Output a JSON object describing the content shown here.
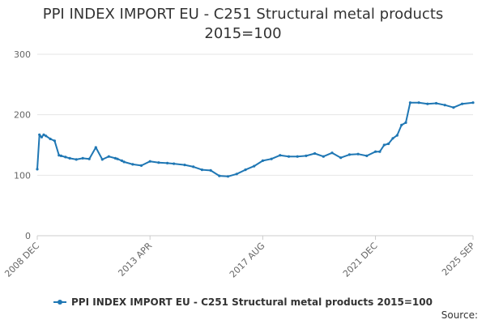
{
  "header": {
    "title_line1": "PPI INDEX IMPORT EU - C251 Structural metal products",
    "title_line2": "2015=100"
  },
  "legend": {
    "label": "PPI INDEX IMPORT EU - C251 Structural metal products 2015=100"
  },
  "footer": {
    "source": "Source:"
  },
  "colors": {
    "series": "#1f77b4",
    "grid": "#e6e6e6",
    "text": "#333333",
    "axis_text": "#666666"
  },
  "chart_data": {
    "type": "line",
    "title": "PPI INDEX IMPORT EU - C251 Structural metal products 2015=100",
    "xlabel": "",
    "ylabel": "",
    "ylim": [
      0,
      300
    ],
    "y_ticks": [
      0,
      100,
      200,
      300
    ],
    "x_ticks": [
      "2008 DEC",
      "2013 APR",
      "2017 AUG",
      "2021 DEC",
      "2025 SEP"
    ],
    "xlim": [
      "2008-12",
      "2025-09"
    ],
    "grid": true,
    "legend_position": "bottom",
    "series": [
      {
        "name": "PPI INDEX IMPORT EU - C251 Structural metal products 2015=100",
        "x": [
          "2008-12",
          "2009-01",
          "2009-02",
          "2009-03",
          "2009-04",
          "2009-06",
          "2009-08",
          "2009-10",
          "2009-11",
          "2010-01",
          "2010-03",
          "2010-06",
          "2010-09",
          "2010-12",
          "2011-03",
          "2011-06",
          "2011-09",
          "2011-12",
          "2012-01",
          "2012-03",
          "2012-04",
          "2012-08",
          "2012-12",
          "2013-04",
          "2013-08",
          "2013-12",
          "2014-03",
          "2014-08",
          "2014-12",
          "2015-04",
          "2015-08",
          "2015-12",
          "2016-04",
          "2016-08",
          "2016-12",
          "2017-04",
          "2017-08",
          "2017-12",
          "2018-04",
          "2018-08",
          "2018-12",
          "2019-04",
          "2019-08",
          "2019-12",
          "2020-04",
          "2020-08",
          "2020-12",
          "2021-04",
          "2021-08",
          "2021-12",
          "2022-02",
          "2022-04",
          "2022-06",
          "2022-08",
          "2022-10",
          "2022-12",
          "2023-02",
          "2023-04",
          "2023-08",
          "2023-12",
          "2024-04",
          "2024-08",
          "2024-12",
          "2025-04",
          "2025-09"
        ],
        "values": [
          110,
          167,
          163,
          167,
          165,
          160,
          157,
          133,
          132,
          130,
          128,
          126,
          128,
          127,
          146,
          126,
          131,
          128,
          127,
          124,
          122,
          118,
          116,
          123,
          121,
          120,
          119,
          117,
          114,
          109,
          108,
          99,
          98,
          102,
          109,
          115,
          124,
          127,
          133,
          131,
          131,
          132,
          136,
          131,
          137,
          129,
          134,
          135,
          132,
          139,
          139,
          150,
          152,
          161,
          166,
          183,
          187,
          220,
          220,
          218,
          219,
          216,
          212,
          218,
          220
        ]
      }
    ]
  }
}
